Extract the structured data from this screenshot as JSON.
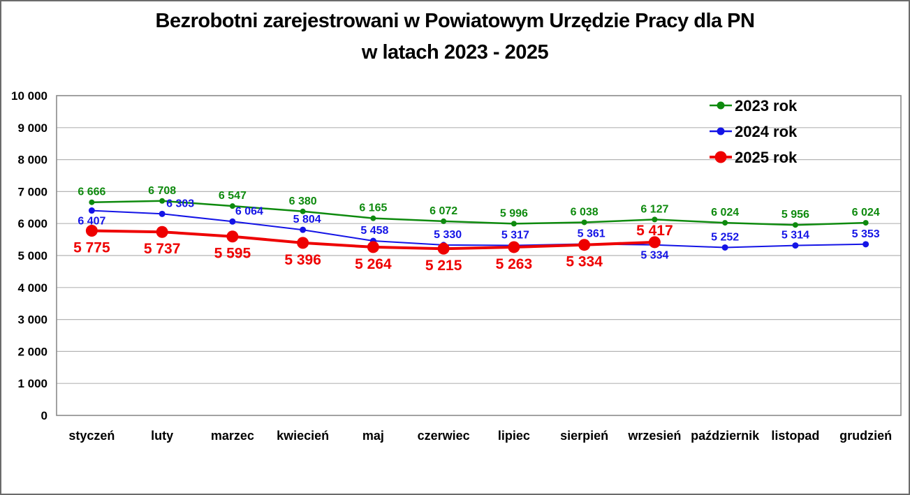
{
  "figure": {
    "title_line1": "Bezrobotni zarejestrowani w Powiatowym Urzędzie Pracy dla PN",
    "title_line2": "w latach 2023 - 2025"
  },
  "chart_data": {
    "type": "line",
    "title": "Bezrobotni zarejestrowani w Powiatowym Urzędzie Pracy dla PN w latach 2023 - 2025",
    "categories": [
      "styczeń",
      "luty",
      "marzec",
      "kwiecień",
      "maj",
      "czerwiec",
      "lipiec",
      "sierpień",
      "wrzesień",
      "październik",
      "listopad",
      "grudzień"
    ],
    "y_axis": {
      "min": 0,
      "max": 10000,
      "step": 1000,
      "tick_labels": [
        "0",
        "1 000",
        "2 000",
        "3 000",
        "4 000",
        "5 000",
        "6 000",
        "7 000",
        "8 000",
        "9 000",
        "10 000"
      ]
    },
    "grid": true,
    "gridline_color": "#b5b5b5",
    "plot_border_color": "#8a8a8a",
    "legend": {
      "position": "top-right",
      "labels": [
        "2023 rok",
        "2024 rok",
        "2025 rok"
      ]
    },
    "series": [
      {
        "name": "2023 rok",
        "color": "#0e8a0e",
        "line_width": 2.5,
        "marker_radius": 4,
        "label_font_size": 16,
        "values": [
          6666,
          6708,
          6547,
          6380,
          6165,
          6072,
          5996,
          6038,
          6127,
          6024,
          5956,
          6024
        ],
        "label_positions": [
          "above",
          "above",
          "above",
          "above",
          "above",
          "above",
          "above",
          "above",
          "above",
          "above",
          "above",
          "above"
        ]
      },
      {
        "name": "2024 rok",
        "color": "#1414e6",
        "line_width": 2,
        "marker_radius": 4.5,
        "label_font_size": 16,
        "values": [
          6407,
          6303,
          6064,
          5804,
          5458,
          5330,
          5317,
          5361,
          5334,
          5252,
          5314,
          5353
        ],
        "label_positions": [
          "below",
          "above",
          "above",
          "above",
          "above",
          "above",
          "above",
          "above",
          "below",
          "above",
          "above",
          "above"
        ],
        "label_dx": [
          0,
          26,
          24,
          6,
          2,
          6,
          2,
          10,
          0,
          0,
          0,
          0
        ]
      },
      {
        "name": "2025 rok",
        "color": "#ee0000",
        "line_width": 4,
        "marker_radius": 8.5,
        "label_font_size": 21,
        "values": [
          5775,
          5737,
          5595,
          5396,
          5264,
          5215,
          5263,
          5334,
          5417
        ],
        "label_positions": [
          "below",
          "below",
          "below",
          "below",
          "below",
          "below",
          "below",
          "below",
          "above"
        ]
      }
    ],
    "number_format": "space-thousands"
  }
}
